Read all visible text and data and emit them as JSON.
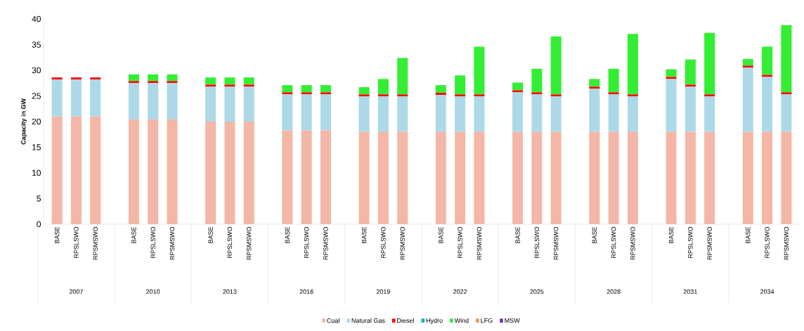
{
  "chart_data": {
    "type": "bar",
    "stacked": true,
    "ylabel": "Capacity in GW",
    "categories": [
      "BASE",
      "RPSLSWO",
      "RPSMSWO",
      "BASE",
      "RPSLSWO",
      "RPSMSWO",
      "BASE",
      "RPSLSWO",
      "RPSMSWO",
      "BASE",
      "RPSLSWO",
      "RPSMSWO",
      "BASE",
      "RPSLSWO",
      "RPSMSWO",
      "BASE",
      "RPSLSWO",
      "RPSMSWO",
      "BASE",
      "RPSLSWO",
      "RPSMSWO",
      "BASE",
      "RPSLSWO",
      "RPSMSWO",
      "BASE",
      "RPSLSWO",
      "RPSMSWO",
      "BASE",
      "RPSLSWO",
      "RPSMSWO"
    ],
    "annotations": [
      "2007",
      "2010",
      "2013",
      "2016",
      "2019",
      "2022",
      "2025",
      "2028",
      "2031",
      "2034"
    ],
    "series": [
      {
        "name": "Coal",
        "color": "#f4b6a6",
        "values": [
          21,
          21,
          21,
          20.4,
          20.4,
          20.4,
          20,
          20,
          20,
          18.3,
          18.3,
          18.3,
          18,
          18,
          18,
          18,
          18,
          18,
          18,
          18,
          18,
          18,
          18,
          18,
          18,
          18,
          18,
          18,
          18,
          18
        ]
      },
      {
        "name": "Natural Gas",
        "color": "#acd9e8",
        "values": [
          7.2,
          7.2,
          7.2,
          7.1,
          7.1,
          7.1,
          6.8,
          6.8,
          6.8,
          7,
          7,
          7,
          6.9,
          6.9,
          6.9,
          7.2,
          6.9,
          6.9,
          7.7,
          7.3,
          6.9,
          8.4,
          7.3,
          6.9,
          10.3,
          8.8,
          6.9,
          12.5,
          10.7,
          7.3
        ]
      },
      {
        "name": "Diesel",
        "color": "#ff0000",
        "values": [
          0.4,
          0.4,
          0.4,
          0.4,
          0.4,
          0.4,
          0.4,
          0.4,
          0.4,
          0.4,
          0.4,
          0.4,
          0.4,
          0.4,
          0.4,
          0.4,
          0.4,
          0.4,
          0.4,
          0.4,
          0.4,
          0.4,
          0.4,
          0.4,
          0.4,
          0.4,
          0.4,
          0.4,
          0.4,
          0.4
        ]
      },
      {
        "name": "Hydro",
        "color": "#00b0c0",
        "values": [
          0,
          0,
          0,
          0,
          0,
          0,
          0,
          0,
          0,
          0,
          0,
          0,
          0,
          0,
          0,
          0,
          0,
          0,
          0,
          0,
          0,
          0,
          0,
          0,
          0,
          0,
          0,
          0,
          0,
          0
        ]
      },
      {
        "name": "Wind",
        "color": "#33ee33",
        "values": [
          0,
          0,
          0,
          1.3,
          1.3,
          1.3,
          1.4,
          1.4,
          1.4,
          1.4,
          1.4,
          1.4,
          1.4,
          3,
          7.1,
          1.5,
          3.7,
          9.3,
          1.5,
          4.6,
          11.3,
          1.5,
          4.6,
          11.8,
          1.5,
          4.9,
          12,
          1.3,
          5.5,
          13.1
        ]
      },
      {
        "name": "LFG",
        "color": "#f79646",
        "values": [
          0,
          0,
          0,
          0,
          0,
          0,
          0,
          0,
          0,
          0,
          0,
          0,
          0,
          0,
          0,
          0,
          0,
          0,
          0,
          0,
          0,
          0,
          0,
          0,
          0,
          0,
          0,
          0,
          0,
          0
        ]
      },
      {
        "name": "MSW",
        "color": "#7030a0",
        "values": [
          0,
          0,
          0,
          0,
          0,
          0,
          0,
          0,
          0,
          0,
          0,
          0,
          0,
          0,
          0,
          0,
          0,
          0,
          0,
          0,
          0,
          0,
          0,
          0,
          0,
          0,
          0,
          0,
          0,
          0
        ]
      }
    ],
    "ylim": [
      0,
      40
    ],
    "yticks": [
      0,
      5,
      10,
      15,
      20,
      25,
      30,
      35,
      40
    ],
    "grid": false,
    "legend": "bottom"
  }
}
